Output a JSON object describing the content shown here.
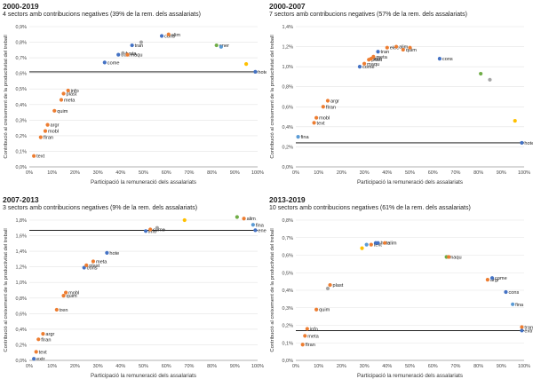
{
  "chart_data": [
    {
      "type": "scatter",
      "title": "2000-2019",
      "subtitle": "4 sectors amb contribucions negatives (39% de la rem. dels assalariats)",
      "xlabel": "Participació la remuneració dels assalariats",
      "ylabel": "Contribució al creixement de la productivitat del treball",
      "xlim": [
        0,
        1.0
      ],
      "ylim": [
        0,
        0.9
      ],
      "x_ticks": [
        "0%",
        "10%",
        "20%",
        "30%",
        "40%",
        "50%",
        "60%",
        "70%",
        "80%",
        "90%",
        "100%"
      ],
      "y_ticks": [
        "0,0%",
        "0,1%",
        "0,2%",
        "0,3%",
        "0,4%",
        "0,5%",
        "0,6%",
        "0,7%",
        "0,8%",
        "0,9%"
      ],
      "reference_line": 0.61,
      "points": [
        {
          "x": 0.02,
          "y": 0.07,
          "label": "text",
          "color": "#ed7d31"
        },
        {
          "x": 0.05,
          "y": 0.19,
          "label": "fIran",
          "color": "#ed7d31"
        },
        {
          "x": 0.07,
          "y": 0.23,
          "label": "mobl",
          "color": "#ed7d31"
        },
        {
          "x": 0.08,
          "y": 0.27,
          "label": "argr",
          "color": "#ed7d31"
        },
        {
          "x": 0.11,
          "y": 0.36,
          "label": "quim",
          "color": "#ed7d31"
        },
        {
          "x": 0.14,
          "y": 0.43,
          "label": "meta",
          "color": "#ed7d31"
        },
        {
          "x": 0.15,
          "y": 0.47,
          "label": "plast",
          "color": "#ed7d31"
        },
        {
          "x": 0.17,
          "y": 0.49,
          "label": "info",
          "color": "#ed7d31"
        },
        {
          "x": 0.33,
          "y": 0.67,
          "label": "come",
          "color": "#4472c4"
        },
        {
          "x": 0.39,
          "y": 0.72,
          "label": "tran",
          "color": "#4472c4"
        },
        {
          "x": 0.41,
          "y": 0.73,
          "label": "fusta",
          "color": "#a5a5a5"
        },
        {
          "x": 0.43,
          "y": 0.72,
          "label": "maqu",
          "color": "#ed7d31"
        },
        {
          "x": 0.45,
          "y": 0.78,
          "label": "tran",
          "color": "#4472c4"
        },
        {
          "x": 0.49,
          "y": 0.8,
          "label": "",
          "color": "#a5a5a5"
        },
        {
          "x": 0.58,
          "y": 0.84,
          "label": "cons",
          "color": "#4472c4"
        },
        {
          "x": 0.61,
          "y": 0.85,
          "label": "alim",
          "color": "#ed7d31"
        },
        {
          "x": 0.82,
          "y": 0.78,
          "label": "ener",
          "color": "#70ad47"
        },
        {
          "x": 0.84,
          "y": 0.77,
          "label": "",
          "color": "#5b9bd5"
        },
        {
          "x": 0.95,
          "y": 0.66,
          "label": "",
          "color": "#ffc000"
        },
        {
          "x": 0.99,
          "y": 0.61,
          "label": "hote",
          "color": "#4472c4"
        }
      ]
    },
    {
      "type": "scatter",
      "title": "2000-2007",
      "subtitle": "7 sectors amb contribucions negatives (57% de la rem. dels assalariats)",
      "xlabel": "Participació la remuneració dels assalariats",
      "ylabel": "Contribució al creixement de la productivitat del treball",
      "xlim": [
        0,
        1.0
      ],
      "ylim": [
        0,
        1.4
      ],
      "x_ticks": [
        "0%",
        "10%",
        "20%",
        "30%",
        "40%",
        "50%",
        "60%",
        "70%",
        "80%",
        "90%",
        "100%"
      ],
      "y_ticks": [
        "0,0%",
        "0,2%",
        "0,4%",
        "0,6%",
        "0,8%",
        "1,0%",
        "1,2%",
        "1,4%"
      ],
      "reference_line": 0.24,
      "points": [
        {
          "x": 0.01,
          "y": 0.3,
          "label": "fina",
          "color": "#5b9bd5"
        },
        {
          "x": 0.08,
          "y": 0.44,
          "label": "text",
          "color": "#ed7d31"
        },
        {
          "x": 0.09,
          "y": 0.49,
          "label": "mobl",
          "color": "#ed7d31"
        },
        {
          "x": 0.12,
          "y": 0.6,
          "label": "fIran",
          "color": "#ed7d31"
        },
        {
          "x": 0.14,
          "y": 0.66,
          "label": "argr",
          "color": "#ed7d31"
        },
        {
          "x": 0.28,
          "y": 1.0,
          "label": "come",
          "color": "#4472c4"
        },
        {
          "x": 0.3,
          "y": 1.03,
          "label": "maqu",
          "color": "#ed7d31"
        },
        {
          "x": 0.32,
          "y": 1.07,
          "label": "plast",
          "color": "#ed7d31"
        },
        {
          "x": 0.33,
          "y": 1.08,
          "label": "info",
          "color": "#ed7d31"
        },
        {
          "x": 0.34,
          "y": 1.1,
          "label": "meta",
          "color": "#ed7d31"
        },
        {
          "x": 0.36,
          "y": 1.15,
          "label": "tran",
          "color": "#4472c4"
        },
        {
          "x": 0.4,
          "y": 1.19,
          "label": "elec",
          "color": "#ed7d31"
        },
        {
          "x": 0.44,
          "y": 1.2,
          "label": "alim",
          "color": "#ed7d31"
        },
        {
          "x": 0.47,
          "y": 1.17,
          "label": "quim",
          "color": "#ed7d31"
        },
        {
          "x": 0.5,
          "y": 1.19,
          "label": "",
          "color": "#ed7d31"
        },
        {
          "x": 0.63,
          "y": 1.08,
          "label": "cons",
          "color": "#4472c4"
        },
        {
          "x": 0.81,
          "y": 0.93,
          "label": "",
          "color": "#70ad47"
        },
        {
          "x": 0.85,
          "y": 0.87,
          "label": "",
          "color": "#a5a5a5"
        },
        {
          "x": 0.96,
          "y": 0.46,
          "label": "",
          "color": "#ffc000"
        },
        {
          "x": 0.99,
          "y": 0.24,
          "label": "hote",
          "color": "#4472c4"
        }
      ]
    },
    {
      "type": "scatter",
      "title": "2007-2013",
      "subtitle": "3 sectors amb contribucions negatives (9% de la rem. dels assalariats)",
      "xlabel": "Participació la remuneració dels assalariats",
      "ylabel": "Contribució al creixement de la productivitat del treball",
      "xlim": [
        0,
        1.0
      ],
      "ylim": [
        0,
        1.8
      ],
      "x_ticks": [
        "0%",
        "10%",
        "20%",
        "30%",
        "40%",
        "50%",
        "60%",
        "70%",
        "80%",
        "90%",
        "100%"
      ],
      "y_ticks": [
        "0,0%",
        "0,2%",
        "0,4%",
        "0,6%",
        "0,8%",
        "1,0%",
        "1,2%",
        "1,4%",
        "1,6%",
        "1,8%"
      ],
      "reference_line": 1.67,
      "points": [
        {
          "x": 0.02,
          "y": 0.02,
          "label": "extr",
          "color": "#4472c4"
        },
        {
          "x": 0.03,
          "y": 0.11,
          "label": "text",
          "color": "#ed7d31"
        },
        {
          "x": 0.04,
          "y": 0.27,
          "label": "fIran",
          "color": "#ed7d31"
        },
        {
          "x": 0.06,
          "y": 0.34,
          "label": "argr",
          "color": "#ed7d31"
        },
        {
          "x": 0.12,
          "y": 0.65,
          "label": "tren",
          "color": "#ed7d31"
        },
        {
          "x": 0.15,
          "y": 0.83,
          "label": "quim",
          "color": "#ed7d31"
        },
        {
          "x": 0.16,
          "y": 0.87,
          "label": "mobl",
          "color": "#ed7d31"
        },
        {
          "x": 0.24,
          "y": 1.19,
          "label": "cons",
          "color": "#4472c4"
        },
        {
          "x": 0.25,
          "y": 1.22,
          "label": "plast",
          "color": "#ed7d31"
        },
        {
          "x": 0.28,
          "y": 1.27,
          "label": "meta",
          "color": "#ed7d31"
        },
        {
          "x": 0.34,
          "y": 1.38,
          "label": "hote",
          "color": "#4472c4"
        },
        {
          "x": 0.51,
          "y": 1.66,
          "label": "info",
          "color": "#4472c4"
        },
        {
          "x": 0.53,
          "y": 1.68,
          "label": "come",
          "color": "#ed7d31"
        },
        {
          "x": 0.56,
          "y": 1.7,
          "label": "",
          "color": "#a5a5a5"
        },
        {
          "x": 0.68,
          "y": 1.8,
          "label": "",
          "color": "#ffc000"
        },
        {
          "x": 0.91,
          "y": 1.84,
          "label": "",
          "color": "#70ad47"
        },
        {
          "x": 0.94,
          "y": 1.82,
          "label": "alim",
          "color": "#ed7d31"
        },
        {
          "x": 0.98,
          "y": 1.74,
          "label": "fina",
          "color": "#5b9bd5"
        },
        {
          "x": 0.99,
          "y": 1.67,
          "label": "ener",
          "color": "#4472c4"
        }
      ]
    },
    {
      "type": "scatter",
      "title": "2013-2019",
      "subtitle": "10 sectors amb contribucions negatives (61% de la rem. dels assalariats)",
      "xlabel": "Participació la remuneració dels assalariats",
      "ylabel": "Contribució al creixement de la productivitat del treball",
      "xlim": [
        0,
        1.0
      ],
      "ylim": [
        0,
        0.8
      ],
      "x_ticks": [
        "0%",
        "10%",
        "20%",
        "30%",
        "40%",
        "50%",
        "60%",
        "70%",
        "80%",
        "90%",
        "100%"
      ],
      "y_ticks": [
        "0,0%",
        "0,1%",
        "0,2%",
        "0,3%",
        "0,4%",
        "0,5%",
        "0,6%",
        "0,7%",
        "0,8%"
      ],
      "reference_line": 0.17,
      "points": [
        {
          "x": 0.03,
          "y": 0.09,
          "label": "fIran",
          "color": "#ed7d31"
        },
        {
          "x": 0.04,
          "y": 0.14,
          "label": "meta",
          "color": "#ed7d31"
        },
        {
          "x": 0.05,
          "y": 0.18,
          "label": "info",
          "color": "#ed7d31"
        },
        {
          "x": 0.09,
          "y": 0.29,
          "label": "quim",
          "color": "#ed7d31"
        },
        {
          "x": 0.14,
          "y": 0.41,
          "label": "",
          "color": "#a5a5a5"
        },
        {
          "x": 0.15,
          "y": 0.43,
          "label": "plast",
          "color": "#ed7d31"
        },
        {
          "x": 0.29,
          "y": 0.64,
          "label": "",
          "color": "#ffc000"
        },
        {
          "x": 0.31,
          "y": 0.66,
          "label": "",
          "color": "#5b9bd5"
        },
        {
          "x": 0.33,
          "y": 0.66,
          "label": "text",
          "color": "#ed7d31"
        },
        {
          "x": 0.35,
          "y": 0.67,
          "label": "",
          "color": "#4472c4"
        },
        {
          "x": 0.36,
          "y": 0.67,
          "label": "hote",
          "color": "#4472c4"
        },
        {
          "x": 0.39,
          "y": 0.67,
          "label": "alim",
          "color": "#ed7d31"
        },
        {
          "x": 0.66,
          "y": 0.59,
          "label": "maqu",
          "color": "#70ad47"
        },
        {
          "x": 0.67,
          "y": 0.59,
          "label": "",
          "color": "#ed7d31"
        },
        {
          "x": 0.84,
          "y": 0.46,
          "label": "argr",
          "color": "#ed7d31"
        },
        {
          "x": 0.86,
          "y": 0.47,
          "label": "come",
          "color": "#4472c4"
        },
        {
          "x": 0.92,
          "y": 0.39,
          "label": "cons",
          "color": "#4472c4"
        },
        {
          "x": 0.95,
          "y": 0.32,
          "label": "fina",
          "color": "#5b9bd5"
        },
        {
          "x": 0.99,
          "y": 0.19,
          "label": "tran",
          "color": "#ed7d31"
        },
        {
          "x": 0.99,
          "y": 0.17,
          "label": "extr",
          "color": "#4472c4"
        }
      ]
    }
  ]
}
